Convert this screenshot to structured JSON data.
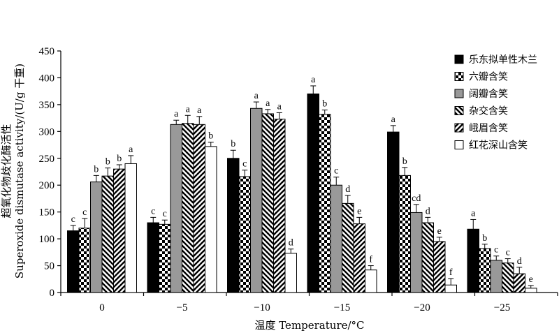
{
  "chart_data": {
    "type": "bar",
    "xlabel": "温度 Temperature/°C",
    "ylabel_cn": "超氧化物歧化酶活性",
    "ylabel_en": "Superoxide dismutase activity/(U/g 干重)",
    "ylim": [
      0,
      450
    ],
    "yticks": [
      0,
      50,
      100,
      150,
      200,
      250,
      300,
      350,
      400,
      450
    ],
    "categories": [
      "0",
      "−5",
      "−10",
      "−15",
      "−20",
      "−25"
    ],
    "legend_position": "top-right",
    "series": [
      {
        "name": "乐东拟单性木兰",
        "pattern": "solid-black",
        "values": [
          115,
          130,
          250,
          370,
          299,
          118
        ],
        "errors": [
          10,
          10,
          15,
          15,
          12,
          18
        ],
        "letters": [
          "c",
          "c",
          "b",
          "a",
          "a",
          "a"
        ]
      },
      {
        "name": "六瓣含笑",
        "pattern": "checker",
        "values": [
          120,
          127,
          216,
          332,
          218,
          82
        ],
        "errors": [
          18,
          8,
          12,
          8,
          15,
          8
        ],
        "letters": [
          "c",
          "c",
          "c",
          "b",
          "b",
          "b"
        ]
      },
      {
        "name": "阔瓣含笑",
        "pattern": "solid-gray",
        "values": [
          206,
          313,
          343,
          200,
          149,
          60
        ],
        "errors": [
          12,
          8,
          12,
          15,
          15,
          8
        ],
        "letters": [
          "b",
          "a",
          "a",
          "c",
          "cd",
          "c"
        ]
      },
      {
        "name": "杂交含笑",
        "pattern": "diag-down",
        "values": [
          217,
          315,
          333,
          166,
          130,
          55
        ],
        "errors": [
          15,
          15,
          8,
          15,
          10,
          8
        ],
        "letters": [
          "b",
          "a",
          "a",
          "d",
          "d",
          "c"
        ]
      },
      {
        "name": "峨眉含笑",
        "pattern": "diag-up",
        "values": [
          230,
          313,
          323,
          128,
          95,
          35
        ],
        "errors": [
          8,
          15,
          12,
          12,
          8,
          12
        ],
        "letters": [
          "b",
          "a",
          "a",
          "e",
          "e",
          "d"
        ]
      },
      {
        "name": "红花深山含笑",
        "pattern": "white",
        "values": [
          240,
          272,
          73,
          42,
          14,
          8
        ],
        "errors": [
          15,
          8,
          8,
          8,
          12,
          5
        ],
        "letters": [
          "a",
          "b",
          "d",
          "f",
          "f",
          "e"
        ]
      }
    ]
  }
}
